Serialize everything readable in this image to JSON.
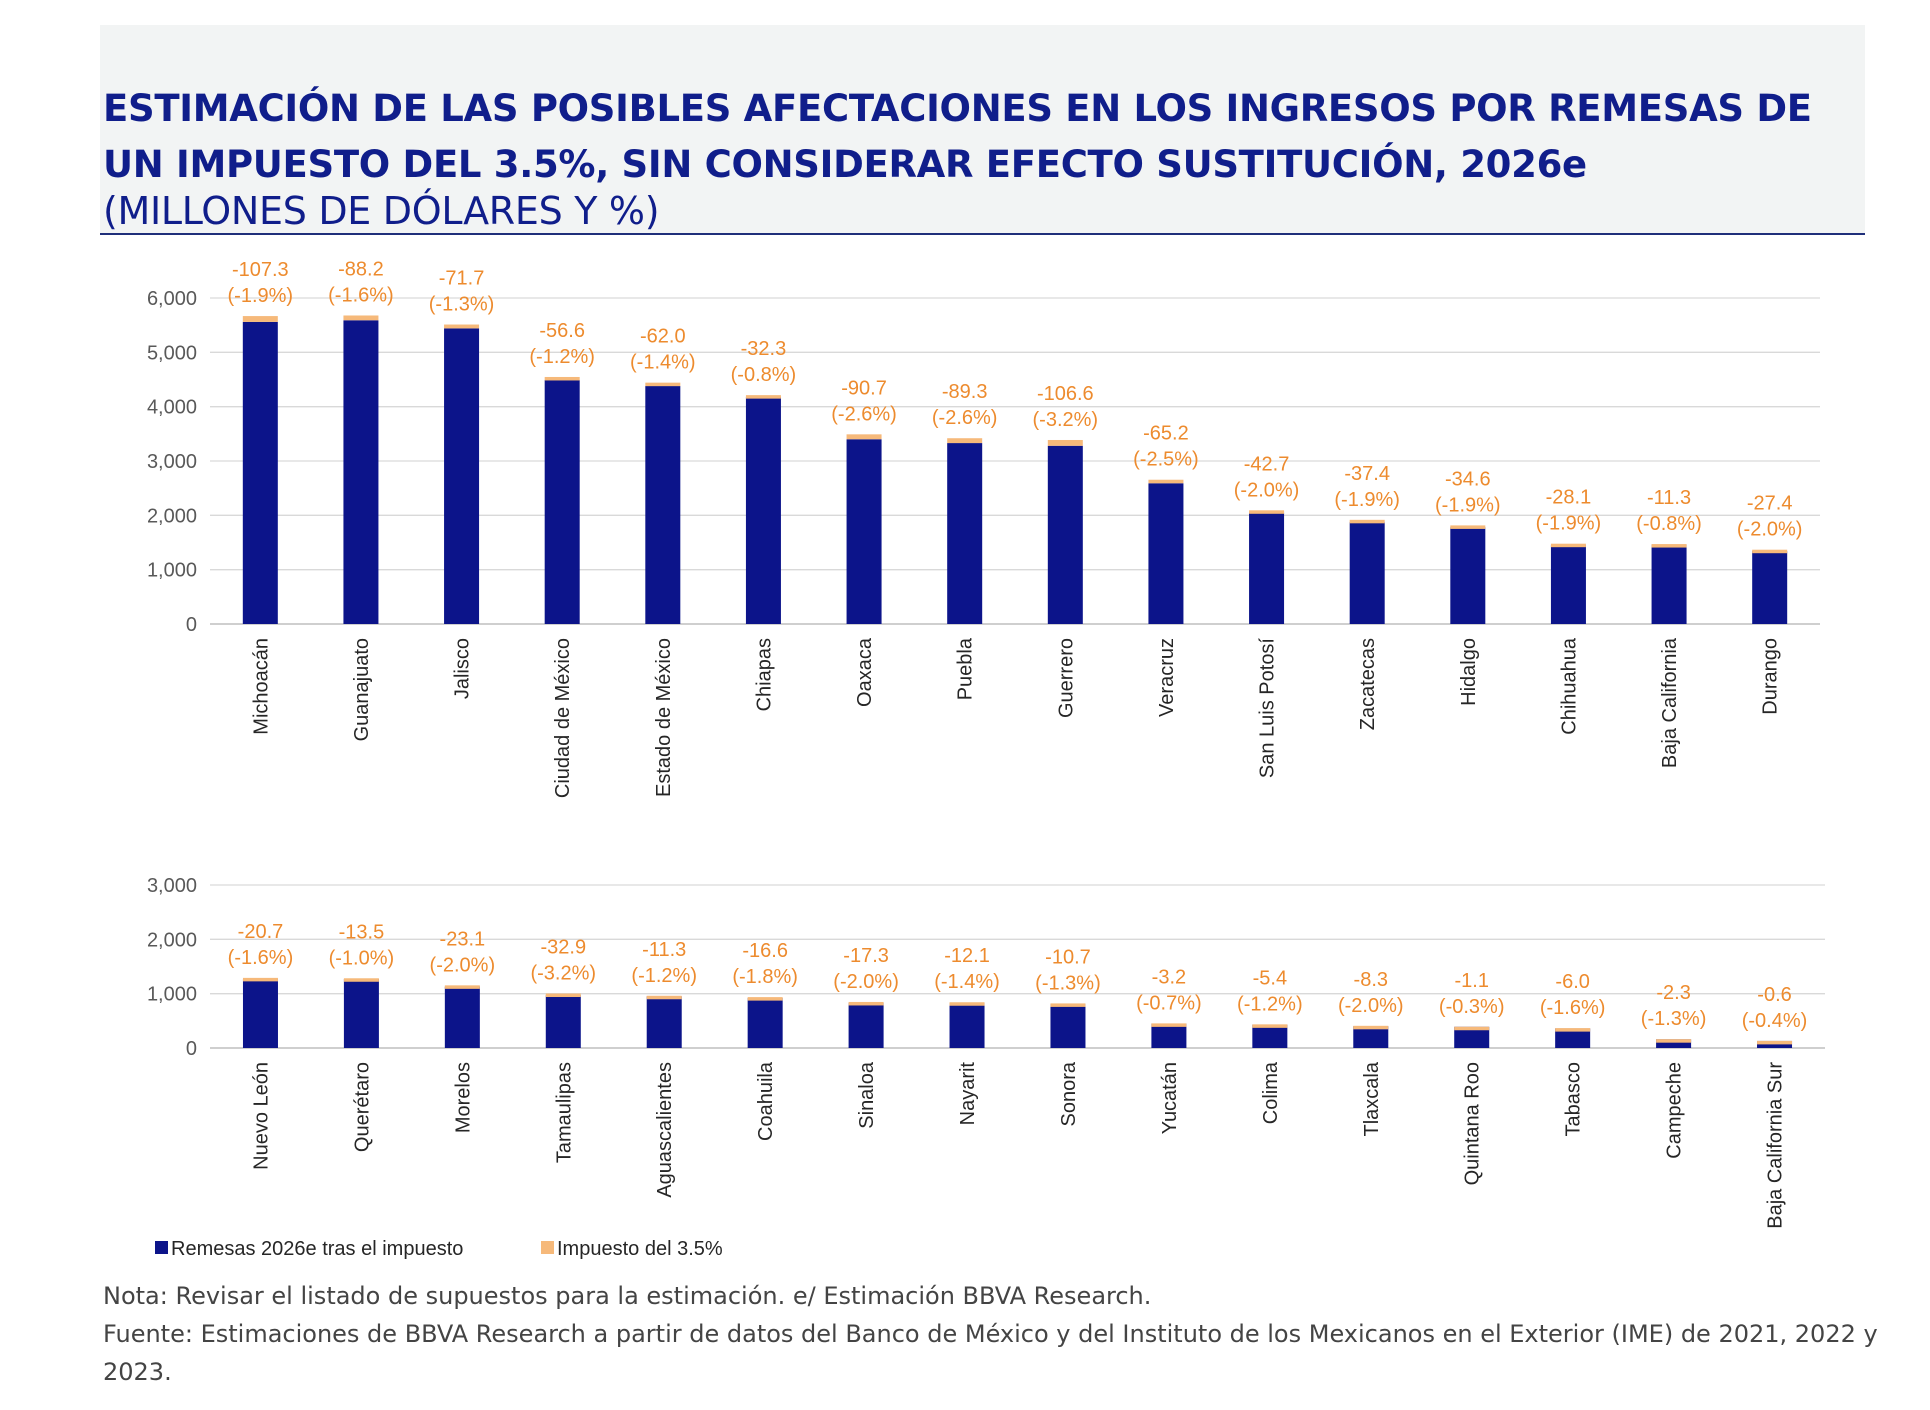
{
  "header": {
    "title": "ESTIMACIÓN DE LAS POSIBLES AFECTACIONES EN LOS INGRESOS POR REMESAS DE UN IMPUESTO DEL 3.5%, SIN CONSIDERAR EFECTO SUSTITUCIÓN, 2026e",
    "subtitle": "(MILLONES DE DÓLARES Y %)"
  },
  "colors": {
    "remesas": "#0c148a",
    "impuesto": "#f6b97a",
    "labels": "#ed8b2e",
    "title": "#101e8b"
  },
  "legend": {
    "position": "bottom-left",
    "items": [
      {
        "label": "Remesas 2026e tras el impuesto",
        "color": "#0c148a"
      },
      {
        "label": "Impuesto del 3.5%",
        "color": "#f6b97a"
      }
    ]
  },
  "chart_data": [
    {
      "type": "bar",
      "stacked": true,
      "ylim": [
        0,
        6000
      ],
      "yticks": [
        "0",
        "1,000",
        "2,000",
        "3,000",
        "4,000",
        "5,000",
        "6,000"
      ],
      "grid": true,
      "categories": [
        "Michoacán",
        "Guanajuato",
        "Jalisco",
        "Ciudad de México",
        "Estado de México",
        "Chiapas",
        "Oaxaca",
        "Puebla",
        "Guerrero",
        "Veracruz",
        "San Luis Potosí",
        "Zacatecas",
        "Hidalgo",
        "Chihuahua",
        "Baja California",
        "Durango"
      ],
      "series": [
        {
          "name": "Remesas 2026e tras el impuesto",
          "values": [
            5560,
            5590,
            5440,
            4490,
            4380,
            4180,
            3400,
            3330,
            3280,
            2590,
            2050,
            1880,
            1780,
            1450,
            1460,
            1340
          ]
        },
        {
          "name": "Impuesto del 3.5%",
          "values": [
            107.3,
            88.2,
            71.7,
            56.6,
            62.0,
            32.3,
            90.7,
            89.3,
            106.6,
            65.2,
            42.7,
            37.4,
            34.6,
            28.1,
            11.3,
            27.4
          ]
        }
      ],
      "data_labels": [
        [
          "-107.3",
          "(-1.9%)"
        ],
        [
          "-88.2",
          "(-1.6%)"
        ],
        [
          "-71.7",
          "(-1.3%)"
        ],
        [
          "-56.6",
          "(-1.2%)"
        ],
        [
          "-62.0",
          "(-1.4%)"
        ],
        [
          "-32.3",
          "(-0.8%)"
        ],
        [
          "-90.7",
          "(-2.6%)"
        ],
        [
          "-89.3",
          "(-2.6%)"
        ],
        [
          "-106.6",
          "(-3.2%)"
        ],
        [
          "-65.2",
          "(-2.5%)"
        ],
        [
          "-42.7",
          "(-2.0%)"
        ],
        [
          "-37.4",
          "(-1.9%)"
        ],
        [
          "-34.6",
          "(-1.9%)"
        ],
        [
          "-28.1",
          "(-1.9%)"
        ],
        [
          "-11.3",
          "(-0.8%)"
        ],
        [
          "-27.4",
          "(-2.0%)"
        ]
      ]
    },
    {
      "type": "bar",
      "stacked": true,
      "ylim": [
        0,
        3000
      ],
      "yticks": [
        "0",
        "1,000",
        "2,000",
        "3,000"
      ],
      "grid": true,
      "categories": [
        "Nuevo León",
        "Querétaro",
        "Morelos",
        "Tamaulipas",
        "Aguascalientes",
        "Coahuila",
        "Sinaloa",
        "Nayarit",
        "Sonora",
        "Yucatán",
        "Colima",
        "Tlaxcala",
        "Quintana Roo",
        "Tabasco",
        "Campeche",
        "Baja California Sur"
      ],
      "series": [
        {
          "name": "Remesas 2026e tras el impuesto",
          "values": [
            1270,
            1270,
            1130,
            970,
            950,
            920,
            830,
            830,
            810,
            450,
            430,
            400,
            390,
            360,
            160,
            130
          ]
        },
        {
          "name": "Impuesto del 3.5%",
          "values": [
            20.7,
            13.5,
            23.1,
            32.9,
            11.3,
            16.6,
            17.3,
            12.1,
            10.7,
            3.2,
            5.4,
            8.3,
            1.1,
            6.0,
            2.3,
            0.6
          ]
        }
      ],
      "data_labels": [
        [
          "-20.7",
          "(-1.6%)"
        ],
        [
          "-13.5",
          "(-1.0%)"
        ],
        [
          "-23.1",
          "(-2.0%)"
        ],
        [
          "-32.9",
          "(-3.2%)"
        ],
        [
          "-11.3",
          "(-1.2%)"
        ],
        [
          "-16.6",
          "(-1.8%)"
        ],
        [
          "-17.3",
          "(-2.0%)"
        ],
        [
          "-12.1",
          "(-1.4%)"
        ],
        [
          "-10.7",
          "(-1.3%)"
        ],
        [
          "-3.2",
          "(-0.7%)"
        ],
        [
          "-5.4",
          "(-1.2%)"
        ],
        [
          "-8.3",
          "(-2.0%)"
        ],
        [
          "-1.1",
          "(-0.3%)"
        ],
        [
          "-6.0",
          "(-1.6%)"
        ],
        [
          "-2.3",
          "(-1.3%)"
        ],
        [
          "-0.6",
          "(-0.4%)"
        ]
      ]
    }
  ],
  "notes": {
    "nota": "Nota: Revisar el listado de supuestos para la estimación. e/ Estimación BBVA Research.",
    "fuente": "Fuente: Estimaciones de BBVA Research a partir de datos del Banco de México y del Instituto de los Mexicanos en el Exterior (IME) de 2021, 2022 y 2023."
  }
}
